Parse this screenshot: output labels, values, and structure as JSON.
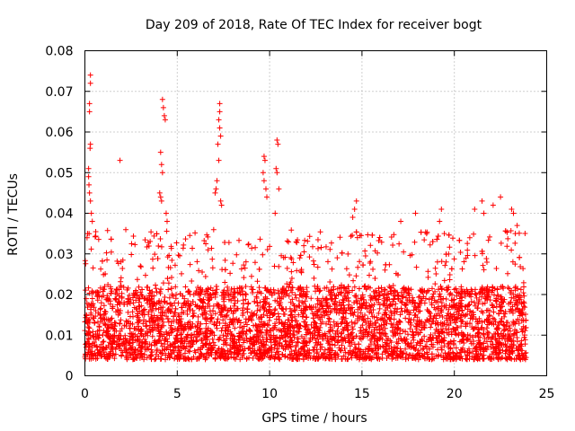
{
  "chart_data": {
    "type": "scatter",
    "title": "Day 209 of 2018, Rate Of TEC Index for receiver bogt",
    "xlabel": "GPS time / hours",
    "ylabel": "ROTI / TECUs",
    "xlim": [
      0,
      25
    ],
    "ylim": [
      0,
      0.08
    ],
    "xticks": [
      0,
      5,
      10,
      15,
      20,
      25
    ],
    "yticks": [
      0,
      0.01,
      0.02,
      0.03,
      0.04,
      0.05,
      0.06,
      0.07,
      0.08
    ],
    "xtick_labels": [
      "0",
      "5",
      "10",
      "15",
      "20",
      "25"
    ],
    "ytick_labels": [
      "0",
      "0.01",
      "0.02",
      "0.03",
      "0.04",
      "0.05",
      "0.06",
      "0.07",
      "0.08"
    ],
    "grid": true,
    "marker": "+",
    "marker_color": "#ff0000",
    "x_range": [
      0.0,
      23.9
    ],
    "series": [
      {
        "name": "",
        "points": [
          [
            0.3,
            0.074
          ],
          [
            0.3,
            0.072
          ],
          [
            0.25,
            0.067
          ],
          [
            0.25,
            0.065
          ],
          [
            0.3,
            0.057
          ],
          [
            0.28,
            0.056
          ],
          [
            0.2,
            0.051
          ],
          [
            0.2,
            0.049
          ],
          [
            0.22,
            0.047
          ],
          [
            0.25,
            0.045
          ],
          [
            0.3,
            0.043
          ],
          [
            0.35,
            0.04
          ],
          [
            0.4,
            0.038
          ],
          [
            0.15,
            0.035
          ],
          [
            1.9,
            0.053
          ],
          [
            4.2,
            0.068
          ],
          [
            4.25,
            0.066
          ],
          [
            4.3,
            0.064
          ],
          [
            4.35,
            0.063
          ],
          [
            4.1,
            0.055
          ],
          [
            4.15,
            0.052
          ],
          [
            4.2,
            0.05
          ],
          [
            4.05,
            0.045
          ],
          [
            4.1,
            0.044
          ],
          [
            4.15,
            0.043
          ],
          [
            4.4,
            0.04
          ],
          [
            4.45,
            0.038
          ],
          [
            7.3,
            0.067
          ],
          [
            7.3,
            0.065
          ],
          [
            7.25,
            0.063
          ],
          [
            7.3,
            0.061
          ],
          [
            7.35,
            0.059
          ],
          [
            7.2,
            0.057
          ],
          [
            7.25,
            0.053
          ],
          [
            7.15,
            0.048
          ],
          [
            7.1,
            0.046
          ],
          [
            7.05,
            0.045
          ],
          [
            7.35,
            0.043
          ],
          [
            7.4,
            0.042
          ],
          [
            9.7,
            0.054
          ],
          [
            9.75,
            0.053
          ],
          [
            9.65,
            0.05
          ],
          [
            9.7,
            0.048
          ],
          [
            9.8,
            0.046
          ],
          [
            9.85,
            0.044
          ],
          [
            10.4,
            0.058
          ],
          [
            10.45,
            0.057
          ],
          [
            10.35,
            0.051
          ],
          [
            10.4,
            0.05
          ],
          [
            10.5,
            0.046
          ],
          [
            10.3,
            0.04
          ],
          [
            12.4,
            0.024
          ],
          [
            12.6,
            0.022
          ],
          [
            14.7,
            0.043
          ],
          [
            14.6,
            0.041
          ],
          [
            14.5,
            0.039
          ],
          [
            17.1,
            0.038
          ],
          [
            17.9,
            0.04
          ],
          [
            18.5,
            0.035
          ],
          [
            19.3,
            0.041
          ],
          [
            19.2,
            0.038
          ],
          [
            21.5,
            0.043
          ],
          [
            21.1,
            0.041
          ],
          [
            21.6,
            0.04
          ],
          [
            22.5,
            0.044
          ],
          [
            22.1,
            0.042
          ],
          [
            23.1,
            0.041
          ],
          [
            23.2,
            0.04
          ],
          [
            23.4,
            0.037
          ],
          [
            23.3,
            0.035
          ]
        ]
      }
    ]
  }
}
